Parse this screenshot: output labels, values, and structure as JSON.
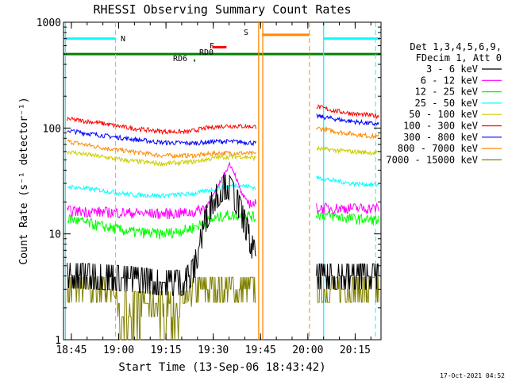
{
  "chart_data": {
    "type": "line",
    "title": "RHESSI Observing Summary Count Rates",
    "xlabel": "Start Time (13-Sep-06 18:43:42)",
    "ylabel": "Count Rate (s⁻¹ detector⁻¹)",
    "x_ticks": [
      "18:45",
      "19:00",
      "19:15",
      "19:30",
      "19:45",
      "20:00",
      "20:15"
    ],
    "y_ticks": [
      "1",
      "10",
      "100",
      "1000"
    ],
    "y_scale": "log",
    "ylim": [
      1,
      1000
    ],
    "xlim_minutes_after_18_43_42": [
      -1.2,
      99.5
    ],
    "grid": false,
    "legend_position": "right",
    "legend_header": [
      "Det 1,3,4,5,6,9,",
      "FDecim 1, Att 0"
    ],
    "gap": {
      "start": 60.0,
      "end": 78.6
    },
    "series": [
      {
        "name": "3 - 6 keV",
        "color": "#000000",
        "seg1": [
          [
            0,
            4.1
          ],
          [
            10,
            4.0
          ],
          [
            20,
            3.8
          ],
          [
            30,
            3.5
          ],
          [
            37,
            3.5
          ],
          [
            40,
            4.5
          ],
          [
            42,
            8.0
          ],
          [
            44,
            14
          ],
          [
            46,
            20
          ],
          [
            49,
            27
          ],
          [
            51,
            29
          ],
          [
            54,
            20
          ],
          [
            57,
            11
          ],
          [
            59,
            7
          ],
          [
            60,
            6
          ]
        ],
        "seg2": [
          [
            79,
            4.0
          ],
          [
            99,
            4.0
          ]
        ]
      },
      {
        "name": "6 - 12 keV",
        "color": "#ff00ff",
        "seg1": [
          [
            0,
            16.5
          ],
          [
            15,
            16
          ],
          [
            30,
            15.5
          ],
          [
            40,
            16
          ],
          [
            44,
            18
          ],
          [
            47,
            25
          ],
          [
            50,
            38
          ],
          [
            51.5,
            46
          ],
          [
            53,
            38
          ],
          [
            55,
            25
          ],
          [
            57,
            20
          ],
          [
            60,
            19
          ]
        ],
        "seg2": [
          [
            79,
            17.5
          ],
          [
            99,
            17.5
          ]
        ]
      },
      {
        "name": "12 - 25 keV",
        "color": "#00ff00",
        "seg1": [
          [
            0,
            14
          ],
          [
            10,
            12
          ],
          [
            20,
            10.5
          ],
          [
            30,
            10
          ],
          [
            38,
            11
          ],
          [
            43,
            12.5
          ],
          [
            47,
            14
          ],
          [
            50,
            15
          ],
          [
            54,
            15
          ],
          [
            58,
            15
          ],
          [
            60,
            14
          ]
        ],
        "seg2": [
          [
            79,
            15.5
          ],
          [
            90,
            14
          ],
          [
            99,
            13.5
          ]
        ]
      },
      {
        "name": "25 - 50 keV",
        "color": "#00ffff",
        "seg1": [
          [
            0,
            28
          ],
          [
            10,
            26
          ],
          [
            20,
            23.5
          ],
          [
            30,
            23
          ],
          [
            40,
            24
          ],
          [
            48,
            27
          ],
          [
            53,
            29
          ],
          [
            58,
            28
          ],
          [
            60,
            27
          ]
        ],
        "seg2": [
          [
            79,
            34
          ],
          [
            90,
            30
          ],
          [
            99,
            29
          ]
        ]
      },
      {
        "name": "50 - 100 keV",
        "color": "#cccc00",
        "seg1": [
          [
            0,
            60
          ],
          [
            10,
            54
          ],
          [
            20,
            49
          ],
          [
            30,
            46
          ],
          [
            40,
            48
          ],
          [
            48,
            53
          ],
          [
            55,
            54
          ],
          [
            60,
            52
          ]
        ],
        "seg2": [
          [
            79,
            64
          ],
          [
            90,
            60
          ],
          [
            99,
            58
          ]
        ]
      },
      {
        "name": "100 - 300 keV",
        "color": "#ff0000",
        "seg1": [
          [
            0,
            122
          ],
          [
            10,
            112
          ],
          [
            20,
            100
          ],
          [
            30,
            93
          ],
          [
            38,
            92
          ],
          [
            44,
            100
          ],
          [
            50,
            105
          ],
          [
            55,
            104
          ],
          [
            60,
            103
          ]
        ],
        "seg2": [
          [
            79,
            160
          ],
          [
            85,
            145
          ],
          [
            92,
            135
          ],
          [
            99,
            130
          ]
        ]
      },
      {
        "name": "300 - 800 keV",
        "color": "#0000ff",
        "seg1": [
          [
            0,
            95
          ],
          [
            10,
            86
          ],
          [
            20,
            79
          ],
          [
            30,
            73
          ],
          [
            40,
            72
          ],
          [
            48,
            75
          ],
          [
            55,
            74
          ],
          [
            60,
            72
          ]
        ],
        "seg2": [
          [
            79,
            130
          ],
          [
            88,
            118
          ],
          [
            99,
            108
          ]
        ]
      },
      {
        "name": "800 - 7000 keV",
        "color": "#ff8800",
        "seg1": [
          [
            0,
            75
          ],
          [
            10,
            66
          ],
          [
            20,
            60
          ],
          [
            30,
            55
          ],
          [
            40,
            55
          ],
          [
            48,
            58
          ],
          [
            55,
            58
          ],
          [
            60,
            57
          ]
        ],
        "seg2": [
          [
            79,
            100
          ],
          [
            88,
            90
          ],
          [
            99,
            82
          ]
        ]
      },
      {
        "name": "7000 - 15000 keV",
        "color": "#808000",
        "seg1": [
          [
            0,
            3.0
          ],
          [
            14,
            3.0
          ],
          [
            16,
            2.2
          ],
          [
            38,
            2.2
          ],
          [
            40,
            3.0
          ],
          [
            60,
            3.0
          ]
        ],
        "seg2": [
          [
            79,
            3.0
          ],
          [
            99,
            3.0
          ]
        ]
      }
    ],
    "annotations": [
      {
        "text": "N",
        "color": "#00ffff"
      },
      {
        "text": "S",
        "color": "#ff8800"
      },
      {
        "text": "F",
        "color": "#ff0000"
      },
      {
        "text": "RD0",
        "color": "#008000"
      },
      {
        "text": "RD6",
        "color": "#008000"
      }
    ],
    "flags": [
      {
        "name": "night",
        "color": "#00ffff",
        "level": 700,
        "ranges": [
          [
            -1.2,
            15.3
          ],
          [
            81.3,
            99.5
          ]
        ]
      },
      {
        "name": "saa",
        "color": "#ff8800",
        "level": 760,
        "ranges": [
          [
            61.8,
            76.8
          ]
        ]
      },
      {
        "name": "flare",
        "color": "#ff0000",
        "level": 580,
        "ranges": [
          [
            46,
            50.5
          ]
        ]
      },
      {
        "name": "rd0",
        "color": "#008000",
        "level": 500,
        "ranges": [
          [
            -1.2,
            99.5
          ]
        ]
      },
      {
        "name": "rd6",
        "color": "#008000",
        "level": 435,
        "ranges": [
          [
            40.1,
            40.6
          ]
        ]
      }
    ],
    "vlines_solid": [
      {
        "x": -0.6,
        "color": "#00ffff"
      },
      {
        "x": 81.3,
        "color": "#00ffff"
      },
      {
        "x": 60.7,
        "color": "#ff8800"
      },
      {
        "x": 62.0,
        "color": "#ff8800"
      }
    ],
    "vlines_dashed": [
      {
        "x": 15.3,
        "color": "#00ffff"
      },
      {
        "x": 97.8,
        "color": "#00ffff"
      },
      {
        "x": 76.8,
        "color": "#ff8800"
      }
    ]
  },
  "footer_timestamp": "17-Oct-2021 04:52"
}
